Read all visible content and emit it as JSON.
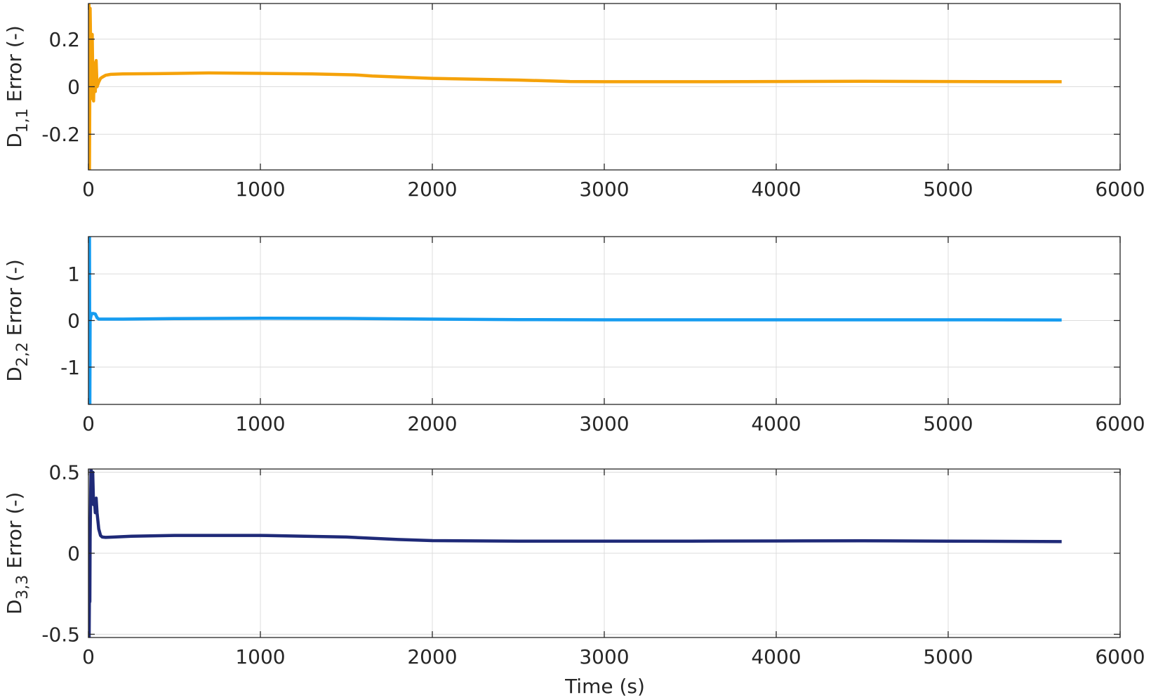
{
  "figure": {
    "xlabel": "Time (s)"
  },
  "chart_data": [
    {
      "type": "line",
      "ylabel": {
        "main": "D",
        "sub": "1,1",
        "rest": " Error (-)"
      },
      "xlim": [
        0,
        6000
      ],
      "ylim": [
        -0.35,
        0.35
      ],
      "xticks": [
        0,
        1000,
        2000,
        3000,
        4000,
        5000,
        6000
      ],
      "xtick_labels": [
        "0",
        "1000",
        "2000",
        "3000",
        "4000",
        "5000",
        "6000"
      ],
      "yticks": [
        -0.2,
        0,
        0.2
      ],
      "ytick_labels": [
        "-0.2",
        "0",
        "0.2"
      ],
      "grid": true,
      "color": "#f5a20a",
      "series": [
        {
          "x": [
            0,
            3,
            6,
            10,
            14,
            18,
            22,
            26,
            30,
            35,
            40,
            45,
            50,
            60,
            70,
            80,
            100,
            130,
            200,
            400,
            700,
            1000,
            1300,
            1550,
            1650,
            2000,
            2500,
            2800,
            3000,
            3500,
            4000,
            4500,
            5000,
            5400,
            5660
          ],
          "y": [
            -0.35,
            0.35,
            -0.35,
            0.33,
            0.12,
            -0.05,
            0.22,
            0.0,
            -0.06,
            0.1,
            -0.02,
            0.11,
            0.0,
            0.02,
            0.035,
            0.04,
            0.048,
            0.052,
            0.054,
            0.055,
            0.058,
            0.056,
            0.054,
            0.05,
            0.045,
            0.035,
            0.028,
            0.022,
            0.021,
            0.021,
            0.022,
            0.023,
            0.022,
            0.021,
            0.021
          ]
        }
      ]
    },
    {
      "type": "line",
      "ylabel": {
        "main": "D",
        "sub": "2,2",
        "rest": " Error (-)"
      },
      "xlim": [
        0,
        6000
      ],
      "ylim": [
        -1.8,
        1.8
      ],
      "xticks": [
        0,
        1000,
        2000,
        3000,
        4000,
        5000,
        6000
      ],
      "xtick_labels": [
        "0",
        "1000",
        "2000",
        "3000",
        "4000",
        "5000",
        "6000"
      ],
      "yticks": [
        -1,
        0,
        1
      ],
      "ytick_labels": [
        "-1",
        "0",
        "1"
      ],
      "grid": true,
      "color": "#169cf0",
      "series": [
        {
          "x": [
            0,
            2,
            4,
            6,
            8,
            10,
            15,
            20,
            30,
            40,
            50,
            60,
            80,
            100,
            200,
            500,
            1000,
            1500,
            2000,
            2500,
            3000,
            3500,
            4000,
            4500,
            5000,
            5660
          ],
          "y": [
            -1.8,
            1.8,
            -1.8,
            1.8,
            -1.8,
            0.0,
            0.1,
            0.15,
            0.15,
            0.14,
            0.06,
            0.03,
            0.03,
            0.03,
            0.03,
            0.04,
            0.05,
            0.045,
            0.03,
            0.02,
            0.015,
            0.015,
            0.015,
            0.015,
            0.015,
            0.012
          ]
        }
      ]
    },
    {
      "type": "line",
      "ylabel": {
        "main": "D",
        "sub": "3,3",
        "rest": " Error (-)"
      },
      "xlim": [
        0,
        6000
      ],
      "ylim": [
        -0.52,
        0.52
      ],
      "xticks": [
        0,
        1000,
        2000,
        3000,
        4000,
        5000,
        6000
      ],
      "xtick_labels": [
        "0",
        "1000",
        "2000",
        "3000",
        "4000",
        "5000",
        "6000"
      ],
      "yticks": [
        -0.5,
        0,
        0.5
      ],
      "ytick_labels": [
        "-0.5",
        "0",
        "0.5"
      ],
      "grid": true,
      "color": "#1f2a78",
      "series": [
        {
          "x": [
            0,
            2,
            4,
            6,
            8,
            10,
            15,
            20,
            25,
            30,
            35,
            40,
            45,
            50,
            55,
            60,
            70,
            80,
            100,
            150,
            250,
            500,
            1000,
            1500,
            1800,
            2000,
            2500,
            3000,
            3500,
            4000,
            4500,
            5000,
            5660
          ],
          "y": [
            -0.52,
            -0.2,
            -0.52,
            -0.18,
            -0.3,
            0.1,
            0.52,
            0.45,
            0.5,
            0.3,
            0.33,
            0.25,
            0.34,
            0.25,
            0.2,
            0.15,
            0.11,
            0.1,
            0.098,
            0.1,
            0.105,
            0.11,
            0.11,
            0.1,
            0.085,
            0.078,
            0.075,
            0.075,
            0.075,
            0.076,
            0.077,
            0.075,
            0.072
          ]
        }
      ]
    }
  ]
}
